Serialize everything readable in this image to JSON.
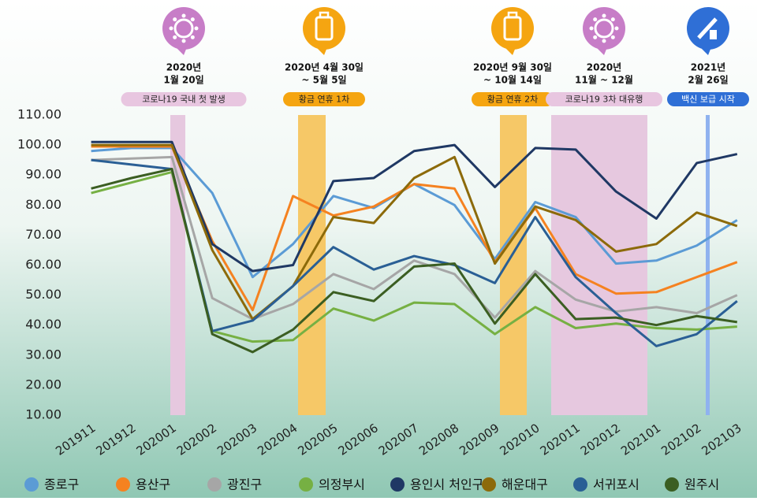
{
  "chart_data": {
    "type": "line",
    "categories": [
      "201911",
      "201912",
      "202001",
      "202002",
      "202003",
      "202004",
      "202005",
      "202006",
      "202007",
      "202008",
      "202009",
      "202010",
      "202011",
      "202012",
      "202101",
      "202102",
      "202103"
    ],
    "ylim": [
      10,
      110
    ],
    "yticks": [
      {
        "value": 10,
        "label": "10.00"
      },
      {
        "value": 20,
        "label": "20.00"
      },
      {
        "value": 30,
        "label": "30.00"
      },
      {
        "value": 40,
        "label": "40.00"
      },
      {
        "value": 50,
        "label": "50.00"
      },
      {
        "value": 60,
        "label": "60.00"
      },
      {
        "value": 70,
        "label": "70.00"
      },
      {
        "value": 80,
        "label": "80.00"
      },
      {
        "value": 90,
        "label": "90.00"
      },
      {
        "value": 100,
        "label": "100.00"
      },
      {
        "value": 110,
        "label": "110.00"
      }
    ],
    "grid": false,
    "series": [
      {
        "name": "종로구",
        "color": "#5b9bd5",
        "values": [
          98,
          99,
          99,
          84,
          56,
          67,
          83,
          79,
          87,
          80,
          62,
          81,
          76,
          60.5,
          61.5,
          66.5,
          75
        ]
      },
      {
        "name": "용산구",
        "color": "#f58220",
        "values": [
          99.5,
          99.5,
          99.5,
          68,
          45,
          83,
          76.5,
          79.5,
          87,
          85.5,
          61,
          79,
          57,
          50.5,
          51,
          56,
          61
        ]
      },
      {
        "name": "광진구",
        "color": "#a6a6a6",
        "values": [
          95,
          95.5,
          96,
          49,
          42,
          47,
          57,
          52,
          61.5,
          57,
          42.5,
          58,
          48.5,
          44.5,
          46,
          44,
          50
        ]
      },
      {
        "name": "의정부시",
        "color": "#76b043",
        "values": [
          84,
          87.5,
          91,
          38,
          34.5,
          35,
          45.5,
          41.5,
          47.5,
          47,
          37,
          46,
          39,
          40.5,
          39,
          38.5,
          39.5
        ]
      },
      {
        "name": "용인시 처인구",
        "color": "#1f3864",
        "values": [
          101,
          101,
          101,
          67,
          58,
          60,
          88,
          89,
          98,
          100,
          86,
          99,
          98.5,
          84.5,
          75.5,
          94,
          97
        ]
      },
      {
        "name": "해운대구",
        "color": "#8c6a0a",
        "values": [
          100,
          100,
          100,
          65,
          42,
          53,
          76,
          74,
          89,
          96,
          60.5,
          79.5,
          75,
          64.5,
          67,
          77.5,
          73
        ]
      },
      {
        "name": "서귀포시",
        "color": "#2a5f95",
        "values": [
          95,
          93.5,
          92,
          38,
          41.5,
          53,
          66,
          58.5,
          63,
          60,
          54,
          76,
          56,
          44,
          33,
          37,
          48
        ]
      },
      {
        "name": "원주시",
        "color": "#3b5e22",
        "values": [
          85.5,
          89,
          92,
          37,
          31,
          38.5,
          51,
          48,
          59.5,
          60.5,
          40.5,
          57,
          42,
          42.5,
          40,
          43,
          41
        ]
      }
    ]
  },
  "annotations": [
    {
      "lines": [
        "2020년",
        "1월 20일"
      ],
      "tag": "코로나19 국내 첫 발생"
    },
    {
      "lines": [
        "2020년 4월 30일",
        "~ 5월 5일"
      ],
      "tag": "황금 연휴 1차"
    },
    {
      "lines": [
        "2020년 9월 30일",
        "~ 10월 14일"
      ],
      "tag": "황금 연휴 2차"
    },
    {
      "lines": [
        "2020년",
        "11월 ~ 12월"
      ],
      "tag": "코로나19 3차 대유행"
    },
    {
      "lines": [
        "2021년",
        "2월 26일"
      ],
      "tag": "백신 보급 시작"
    }
  ]
}
